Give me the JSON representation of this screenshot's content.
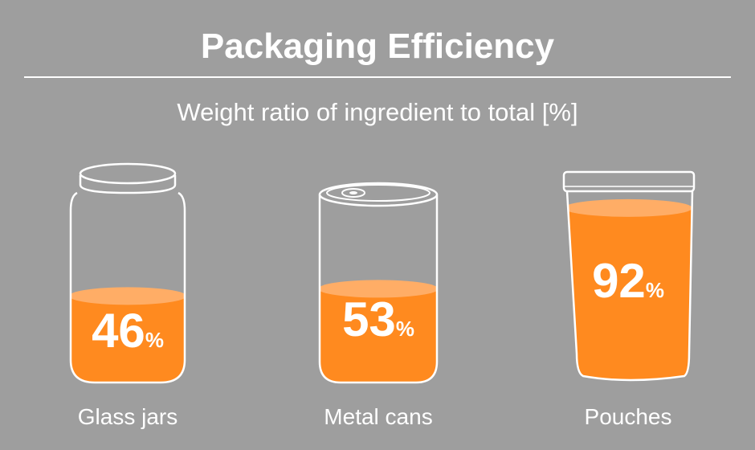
{
  "title": "Packaging Efficiency",
  "subtitle": "Weight ratio of ingredient to total [%]",
  "unit": "%",
  "colors": {
    "background": "#9e9e9e",
    "fill": "#ff8a1f",
    "fill_top": "#ffad66",
    "outline": "#ffffff"
  },
  "chart_data": {
    "type": "bar",
    "title": "Packaging Efficiency",
    "subtitle": "Weight ratio of ingredient to total [%]",
    "categories": [
      "Glass jars",
      "Metal cans",
      "Pouches"
    ],
    "values": [
      46,
      53,
      92
    ],
    "ylim": [
      0,
      100
    ],
    "icons": [
      "glass-jar-icon",
      "metal-can-icon",
      "pouch-icon"
    ]
  }
}
